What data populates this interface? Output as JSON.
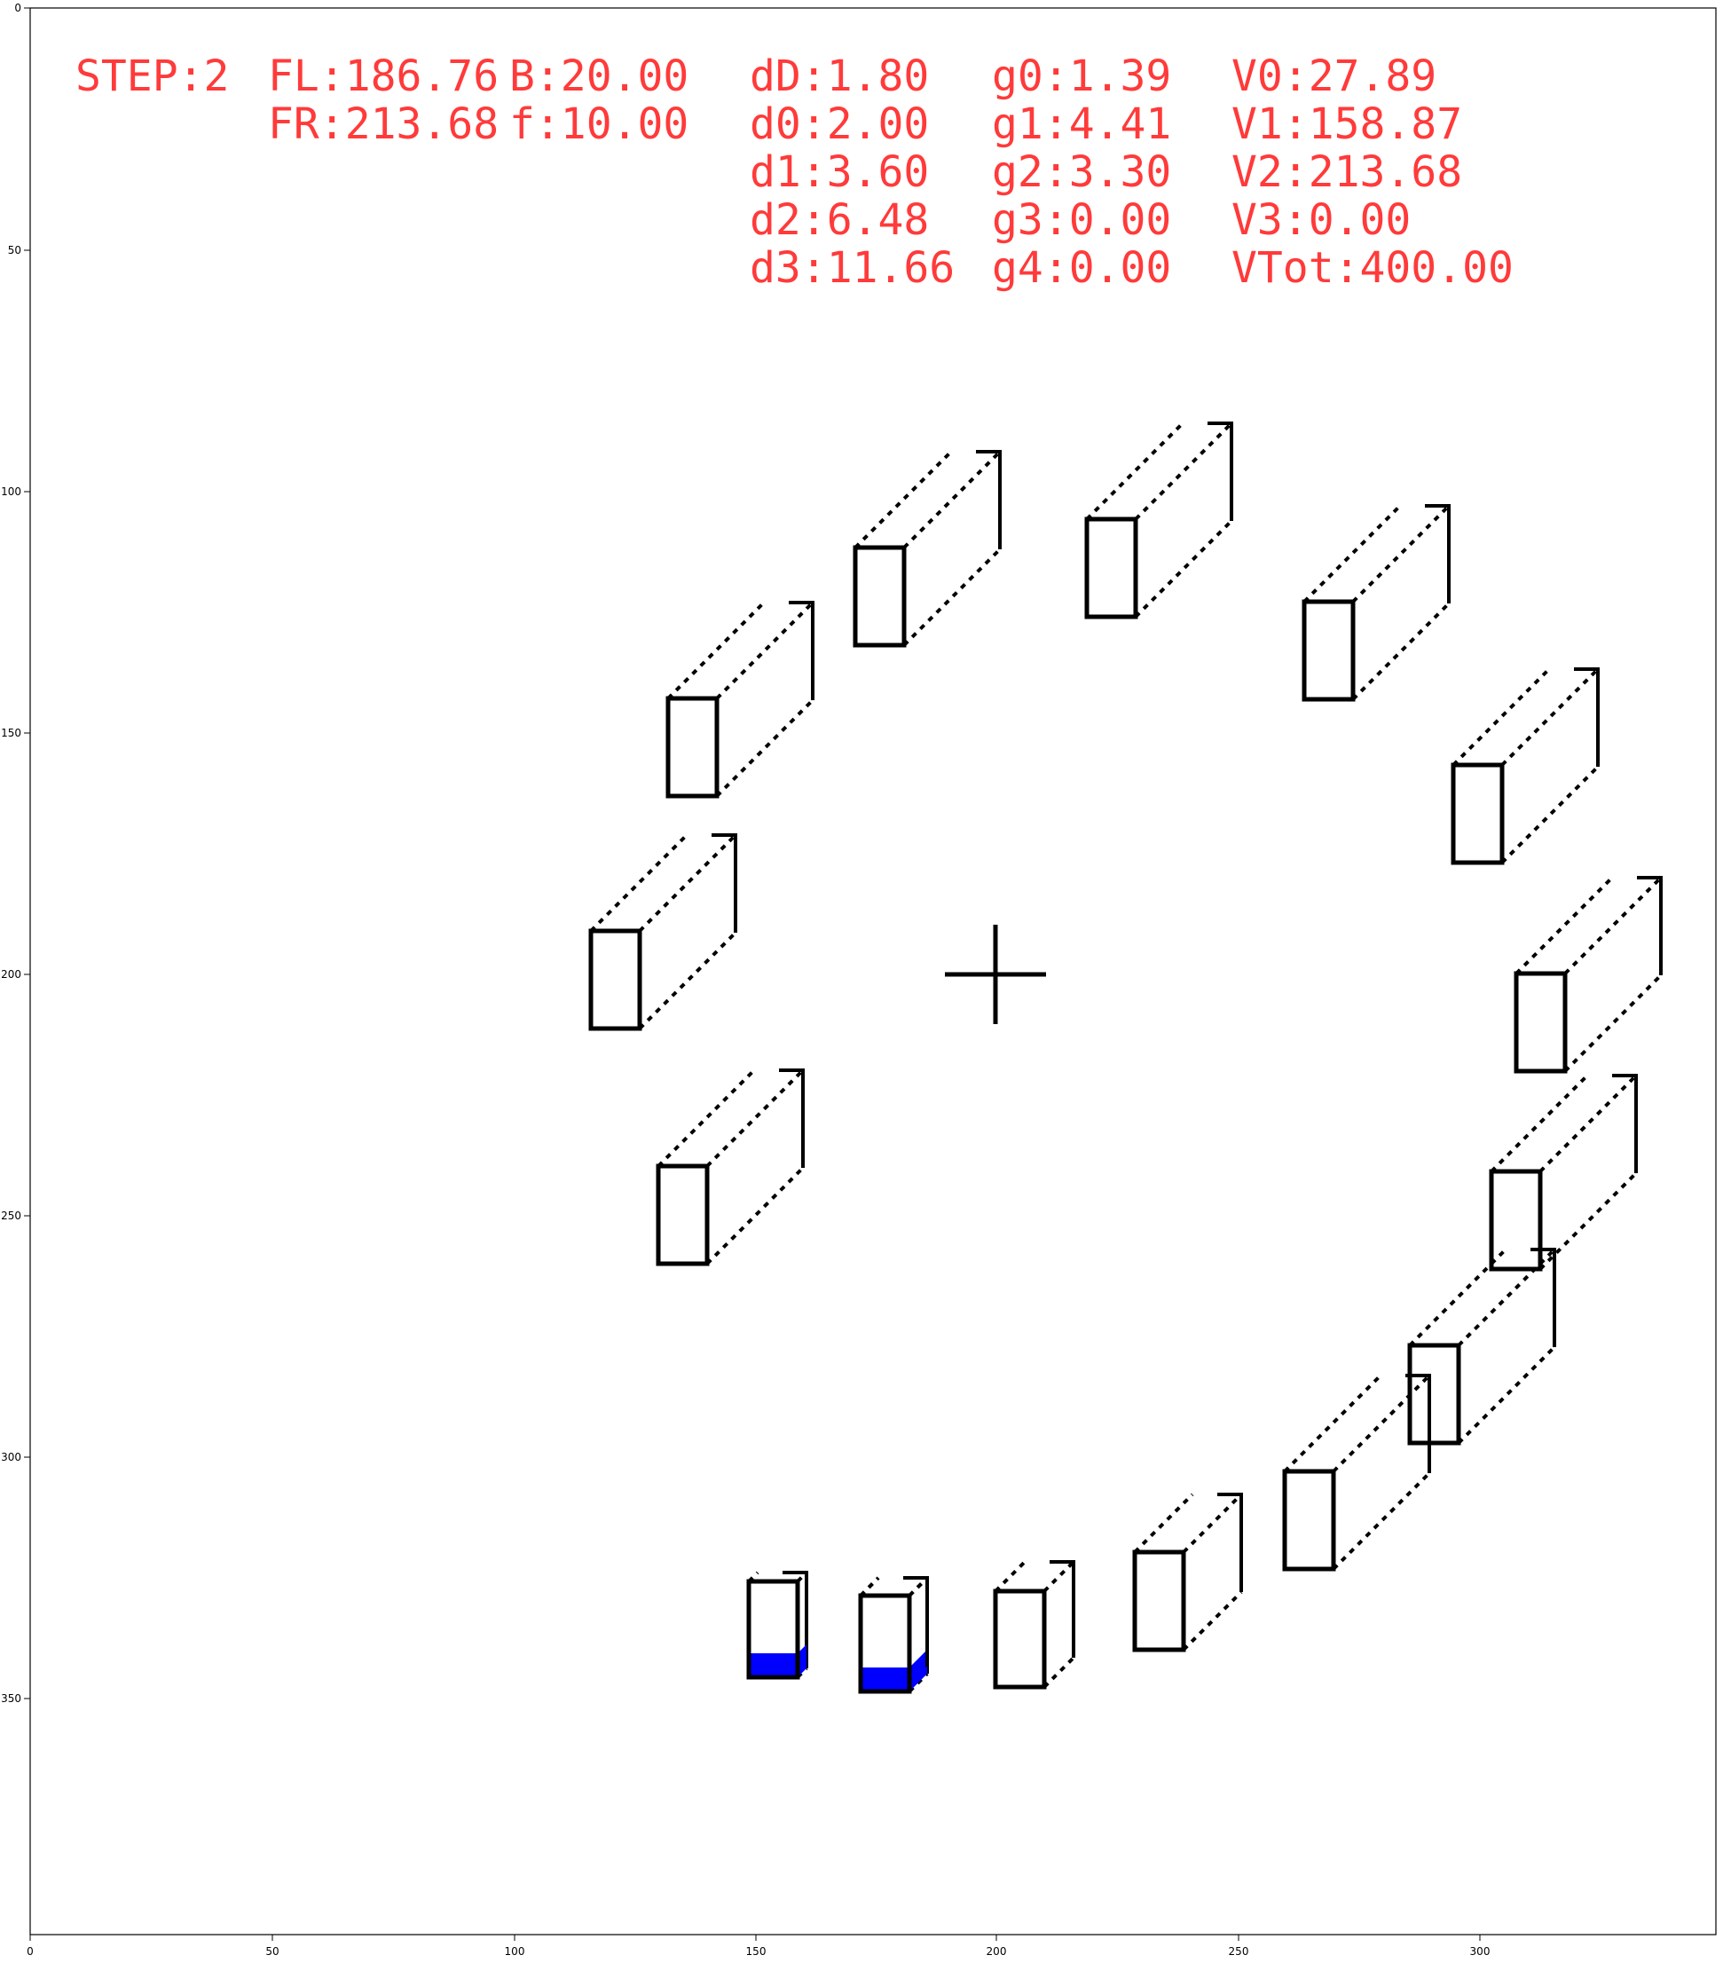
{
  "hud": {
    "color": "#ff2a2a",
    "lines": [
      {
        "id": "step",
        "text": "STEP:2"
      },
      {
        "id": "fl",
        "text": "FL:186.76"
      },
      {
        "id": "b",
        "text": "B:20.00"
      },
      {
        "id": "fr",
        "text": "FR:213.68"
      },
      {
        "id": "f",
        "text": "f:10.00"
      },
      {
        "id": "dD",
        "text": "dD:1.80"
      },
      {
        "id": "d0",
        "text": "d0:2.00"
      },
      {
        "id": "d1",
        "text": "d1:3.60"
      },
      {
        "id": "d2",
        "text": "d2:6.48"
      },
      {
        "id": "d3",
        "text": "d3:11.66"
      },
      {
        "id": "g0",
        "text": "g0:1.39"
      },
      {
        "id": "g1",
        "text": "g1:4.41"
      },
      {
        "id": "g2",
        "text": "g2:3.30"
      },
      {
        "id": "g3",
        "text": "g3:0.00"
      },
      {
        "id": "g4",
        "text": "g4:0.00"
      },
      {
        "id": "v0",
        "text": "V0:27.89"
      },
      {
        "id": "v1",
        "text": "V1:158.87"
      },
      {
        "id": "v2",
        "text": "V2:213.68"
      },
      {
        "id": "v3",
        "text": "V3:0.00"
      },
      {
        "id": "vtot",
        "text": "VTot:400.00"
      }
    ]
  },
  "axes": {
    "x_ticks": [
      "0",
      "50",
      "100",
      "150",
      "200",
      "250",
      "300"
    ],
    "y_ticks": [
      "0",
      "50",
      "100",
      "150",
      "200",
      "250",
      "300",
      "350"
    ]
  },
  "scene": {
    "fill_color": "#0000ff",
    "outline_color": "#000000",
    "containers": [
      {
        "id": "c1",
        "fill": 0
      },
      {
        "id": "c2",
        "fill": 0
      },
      {
        "id": "c3",
        "fill": 0
      },
      {
        "id": "c4",
        "fill": 0
      },
      {
        "id": "c5",
        "fill": 0
      },
      {
        "id": "c6",
        "fill": 0
      },
      {
        "id": "c7",
        "fill": 0
      },
      {
        "id": "c8",
        "fill": 0
      },
      {
        "id": "c9",
        "fill": 0
      },
      {
        "id": "c10",
        "fill": 0
      },
      {
        "id": "c11",
        "fill": 0
      },
      {
        "id": "c12",
        "fill": 0
      },
      {
        "id": "c13",
        "fill": 0
      },
      {
        "id": "c14",
        "fill": 0.25
      },
      {
        "id": "c15",
        "fill": 0.25
      },
      {
        "id": "c16",
        "fill": 0.08
      }
    ]
  }
}
